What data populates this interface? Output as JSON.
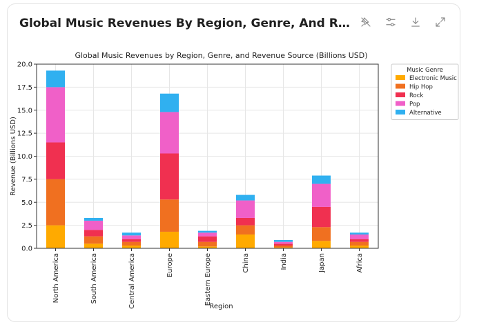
{
  "card": {
    "title": "Global Music Revenues By Region, Genre, And Revenue ...",
    "tools": [
      {
        "name": "pin-off-icon"
      },
      {
        "name": "settings-sliders-icon"
      },
      {
        "name": "download-icon"
      },
      {
        "name": "expand-icon"
      }
    ]
  },
  "chart_data": {
    "type": "bar",
    "stacked": true,
    "title": "Global Music Revenues by Region, Genre, and Revenue Source (Billions USD)",
    "xlabel": "Region",
    "ylabel": "Revenue (Billions USD)",
    "ylim": [
      0,
      20
    ],
    "yticks": [
      "0.0",
      "2.5",
      "5.0",
      "7.5",
      "10.0",
      "12.5",
      "15.0",
      "17.5",
      "20.0"
    ],
    "grid": true,
    "legend": {
      "title": "Music Genre",
      "position": "top-right"
    },
    "categories": [
      "North America",
      "South America",
      "Central America",
      "Europe",
      "Eastern Europe",
      "China",
      "India",
      "Japan",
      "Africa"
    ],
    "series": [
      {
        "name": "Electronic Music",
        "color": "#ffaa00",
        "values": [
          2.5,
          0.5,
          0.3,
          1.8,
          0.2,
          1.5,
          0.1,
          0.8,
          0.3
        ]
      },
      {
        "name": "Hip Hop",
        "color": "#f07020",
        "values": [
          5.0,
          0.8,
          0.4,
          3.5,
          0.5,
          1.0,
          0.2,
          1.5,
          0.4
        ]
      },
      {
        "name": "Rock",
        "color": "#f03050",
        "values": [
          4.0,
          0.7,
          0.3,
          5.0,
          0.6,
          0.8,
          0.2,
          2.2,
          0.3
        ]
      },
      {
        "name": "Pop",
        "color": "#f060c8",
        "values": [
          6.0,
          1.0,
          0.4,
          4.5,
          0.4,
          1.9,
          0.2,
          2.5,
          0.5
        ]
      },
      {
        "name": "Alternative",
        "color": "#30b0f0",
        "values": [
          1.8,
          0.3,
          0.3,
          2.0,
          0.2,
          0.6,
          0.2,
          0.9,
          0.2
        ]
      }
    ]
  }
}
